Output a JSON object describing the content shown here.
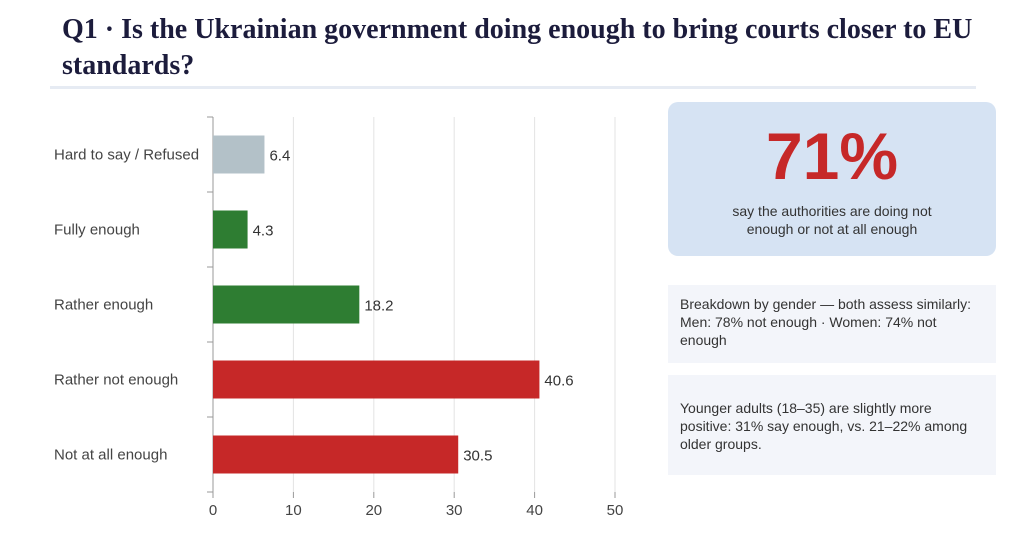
{
  "title": "Q1 · Is the Ukrainian government doing enough to bring courts closer to EU standards?",
  "kpi": {
    "value": "71%",
    "caption": "say the authorities are doing not enough or not at all enough"
  },
  "notes": [
    "Breakdown by gender — both assess similarly: Men: 78% not enough · Women: 74% not enough",
    "Younger adults (18–35) are slightly more positive: 31% say enough, vs. 21–22% among older groups."
  ],
  "colors": {
    "refused": "#b3c1c8",
    "enough": "#2e7d32",
    "not_enough": "#c62828",
    "kpi_value": "#c62828"
  },
  "chart_data": {
    "type": "bar",
    "orientation": "horizontal",
    "categories": [
      "Hard to say / Refused",
      "Fully enough",
      "Rather enough",
      "Rather not enough",
      "Not at all enough"
    ],
    "values": [
      6.4,
      4.3,
      18.2,
      40.6,
      30.5
    ],
    "value_labels": [
      "6.4",
      "4.3",
      "18.2",
      "40.6",
      "30.5"
    ],
    "bar_colors": [
      "#b3c1c8",
      "#2e7d32",
      "#2e7d32",
      "#c62828",
      "#c62828"
    ],
    "xlim": [
      0,
      50
    ],
    "xticks": [
      0,
      10,
      20,
      30,
      40,
      50
    ],
    "grid": true,
    "legend": "none"
  }
}
